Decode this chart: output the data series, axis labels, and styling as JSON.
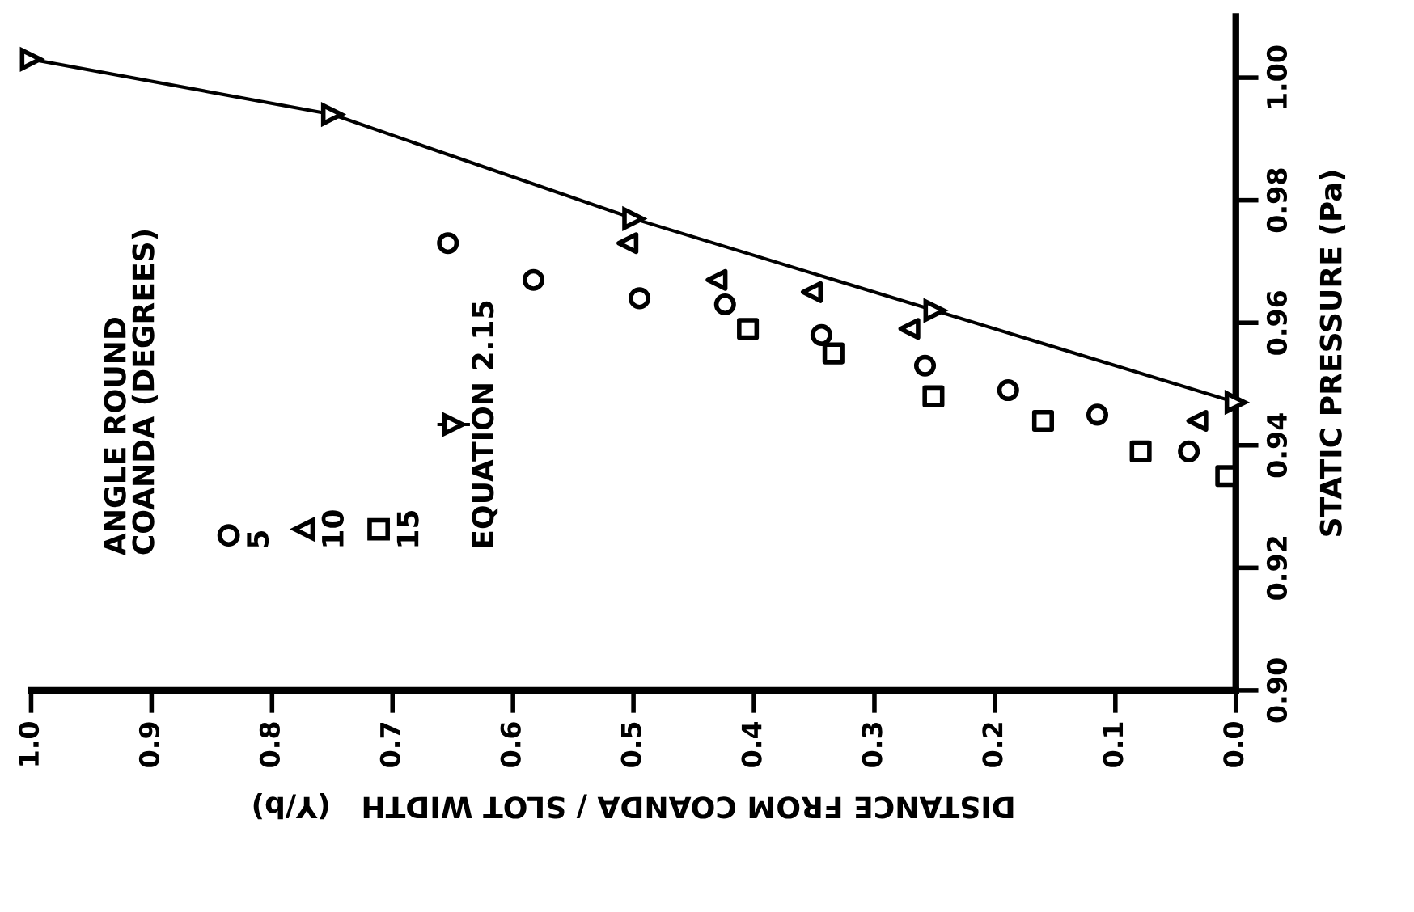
{
  "chart_data": {
    "type": "scatter",
    "xlabel": "DISTANCE FROM COANDA / SLOT WIDTH   (Y/b)",
    "ylabel": "STATIC PRESSURE (Pa)",
    "legend_title": "ANGLE ROUND\nCOANDA (DEGREES)",
    "xlim": [
      1.0,
      0.0
    ],
    "xticks": [
      {
        "value": 1.0,
        "label": "1.0"
      },
      0.9,
      0.8,
      0.7,
      0.6,
      0.5,
      0.4,
      0.3,
      0.2,
      0.1,
      {
        "value": 0.0,
        "label": "0.0"
      }
    ],
    "ylim": [
      0.9,
      1.01
    ],
    "yticks": [
      {
        "value": 0.9,
        "label": "0.90"
      },
      0.92,
      0.94,
      0.96,
      0.98,
      {
        "value": 1.0,
        "label": "1.00"
      }
    ],
    "legend": "bottom left",
    "grid": false,
    "series": [
      {
        "name": "5",
        "color": "#000000",
        "marker": "circle",
        "x": [
          0.654,
          0.583,
          0.495,
          0.424,
          0.344,
          0.258,
          0.189,
          0.115,
          0.039
        ],
        "values": [
          0.973,
          0.967,
          0.964,
          0.963,
          0.958,
          0.953,
          0.949,
          0.945,
          0.939
        ]
      },
      {
        "name": "10",
        "color": "#000000",
        "marker": "triangle",
        "x": [
          0.505,
          0.431,
          0.352,
          0.271,
          0.032
        ],
        "values": [
          0.973,
          0.967,
          0.965,
          0.959,
          0.944
        ]
      },
      {
        "name": "15",
        "color": "#000000",
        "marker": "square",
        "x": [
          0.405,
          0.334,
          0.251,
          0.16,
          0.079,
          0.008
        ],
        "values": [
          0.959,
          0.955,
          0.948,
          0.944,
          0.939,
          0.935
        ]
      },
      {
        "name": "EQUATION 2.15",
        "type": "line",
        "color": "#000000",
        "marker": "triangle_down",
        "line_style": "solid",
        "x": [
          1.0,
          0.75,
          0.5,
          0.25,
          0.0
        ],
        "values": [
          1.003,
          0.994,
          0.977,
          0.962,
          0.947
        ]
      }
    ]
  }
}
